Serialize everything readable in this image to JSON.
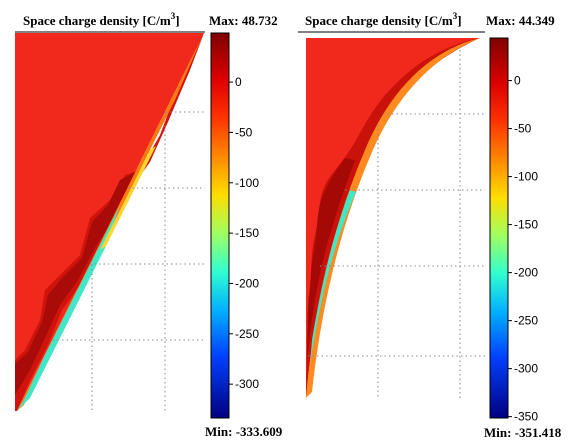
{
  "chart_data": [
    {
      "type": "heatmap",
      "title": "Space charge density [C/m",
      "title_superscript": "3",
      "title_suffix": "]",
      "max_label": "Max: 48.732",
      "min_label": "Min: -333.609",
      "max": 48.732,
      "min": -333.609,
      "colorbar_ticks": [
        0,
        -50,
        -100,
        -150,
        -200,
        -250,
        -300
      ],
      "colorbar_tick_labels": [
        "0",
        "-50",
        "-100",
        "-150",
        "-200",
        "-250",
        "-300"
      ],
      "colormap": "jet",
      "background_value_color": "#f1281c",
      "grid": true
    },
    {
      "type": "heatmap",
      "title": "Space charge density [C/m",
      "title_superscript": "3",
      "title_suffix": "]",
      "max_label": "Max: 44.349",
      "min_label": "Min: -351.418",
      "max": 44.349,
      "min": -351.418,
      "colorbar_ticks": [
        0,
        -50,
        -100,
        -150,
        -200,
        -250,
        -300,
        -350
      ],
      "colorbar_tick_labels": [
        "0",
        "-50",
        "-100",
        "-150",
        "-200",
        "-250",
        "-300",
        "-350"
      ],
      "colormap": "jet",
      "background_value_color": "#f1281c",
      "grid": true
    }
  ]
}
